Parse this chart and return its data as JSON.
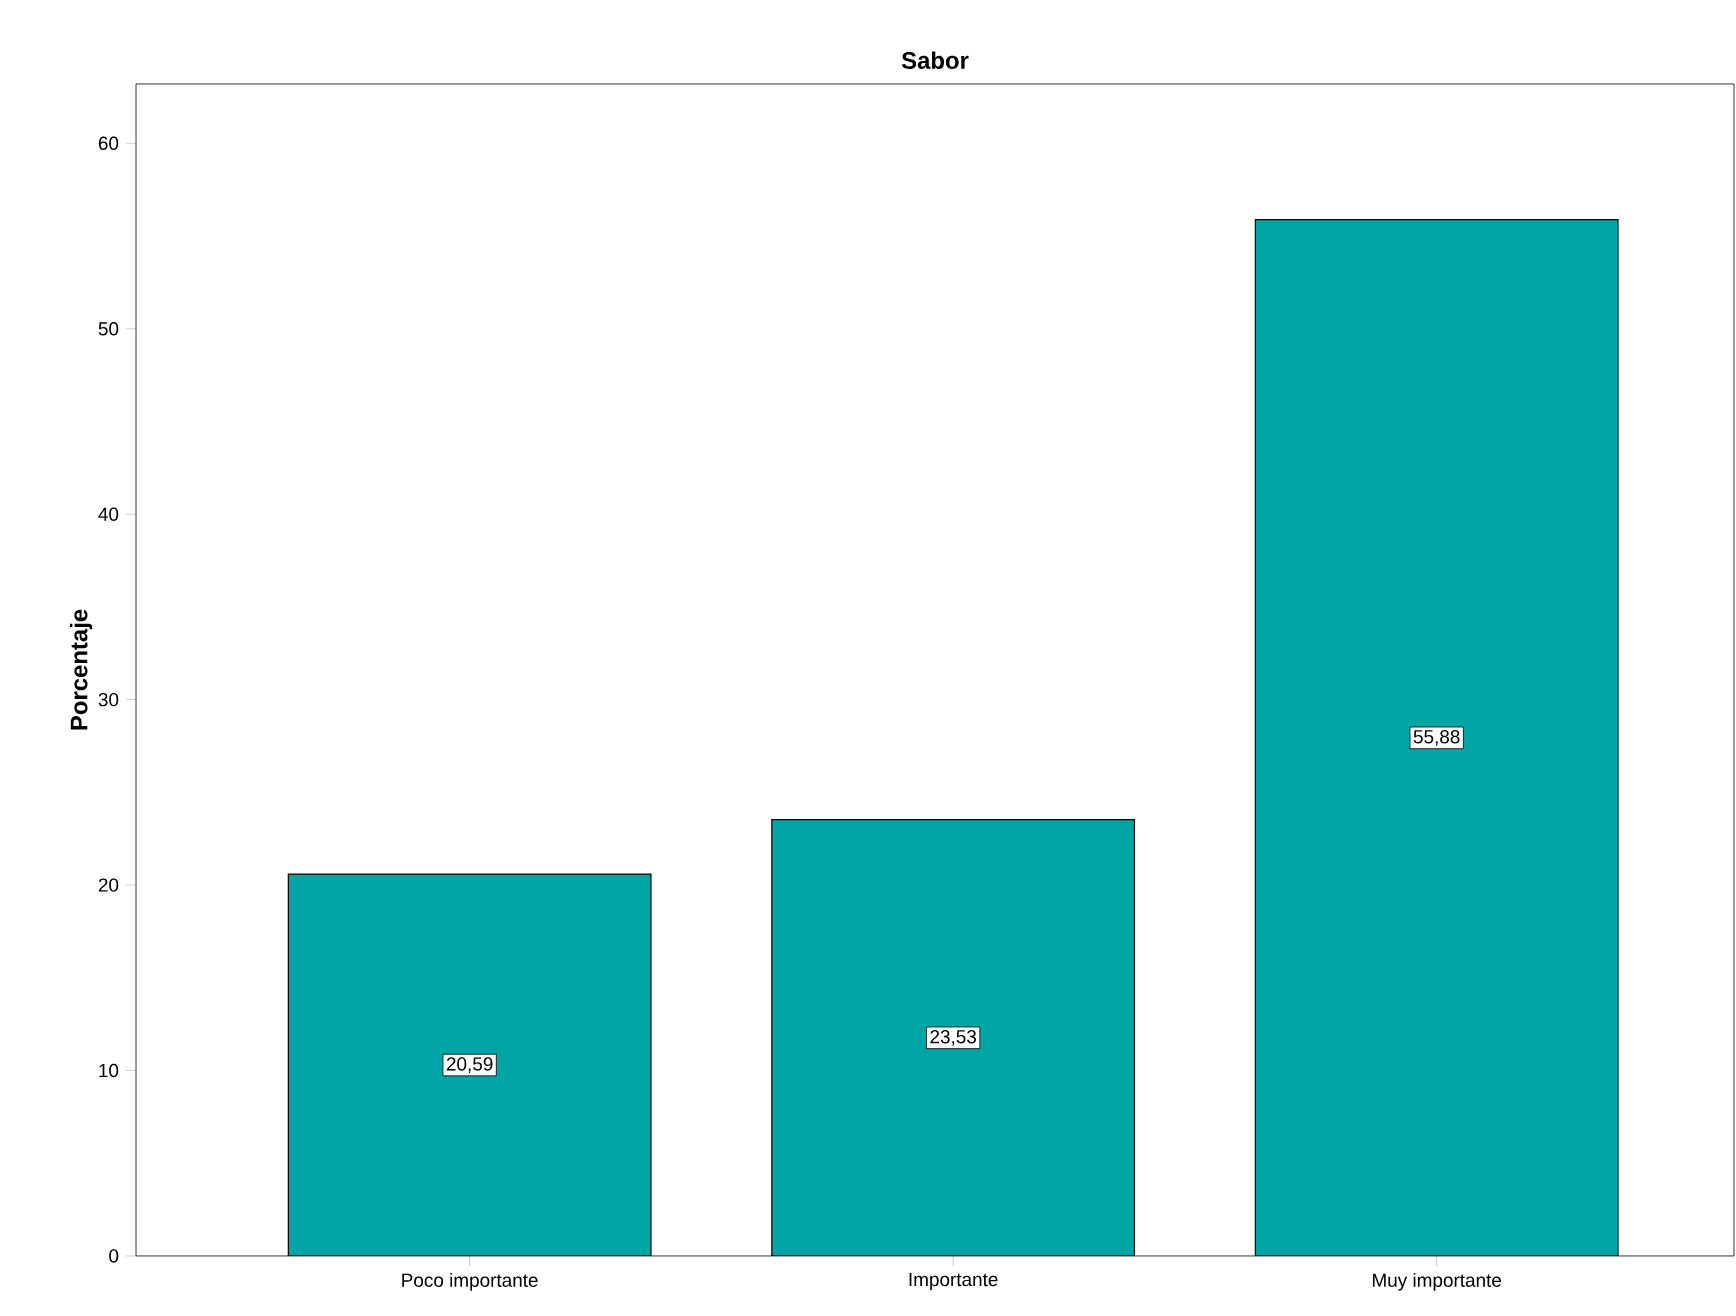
{
  "chart_data": {
    "type": "bar",
    "title": "Sabor",
    "ylabel": "Porcentaje",
    "categories": [
      "Poco importante",
      "Importante",
      "Muy importante"
    ],
    "values": [
      20.59,
      23.53,
      55.88
    ],
    "value_labels": [
      "20,59",
      "23,53",
      "55,88"
    ],
    "color": "#00a6a6",
    "ylim": [
      0,
      63.2
    ],
    "yticks": [
      0,
      10,
      20,
      30,
      40,
      50,
      60
    ],
    "grid": false
  }
}
